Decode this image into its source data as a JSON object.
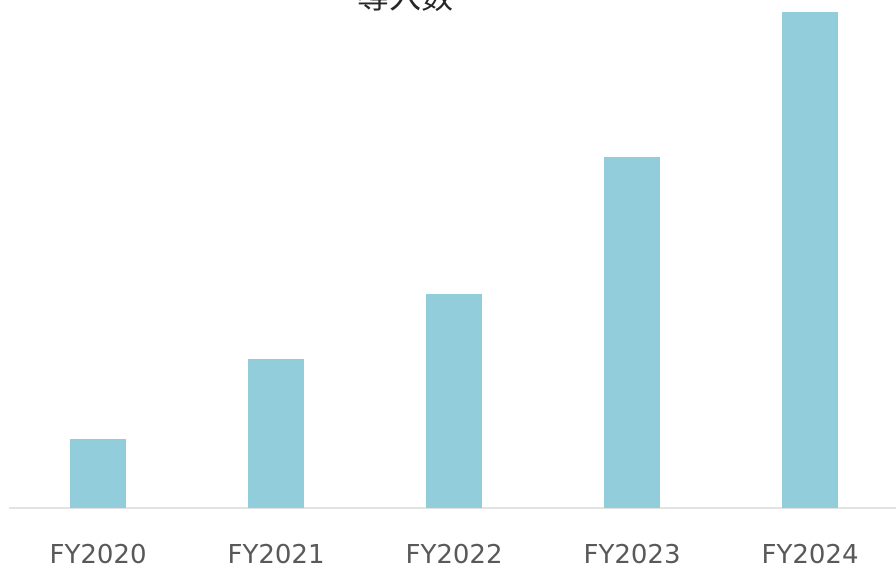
{
  "chart_data": {
    "type": "bar",
    "title": "導入数",
    "categories": [
      "FY2020",
      "FY2021",
      "FY2022",
      "FY2023",
      "FY2024"
    ],
    "values": [
      69,
      149,
      214,
      351,
      496
    ],
    "color": "#92cddc",
    "ylim": [
      0,
      500
    ]
  }
}
